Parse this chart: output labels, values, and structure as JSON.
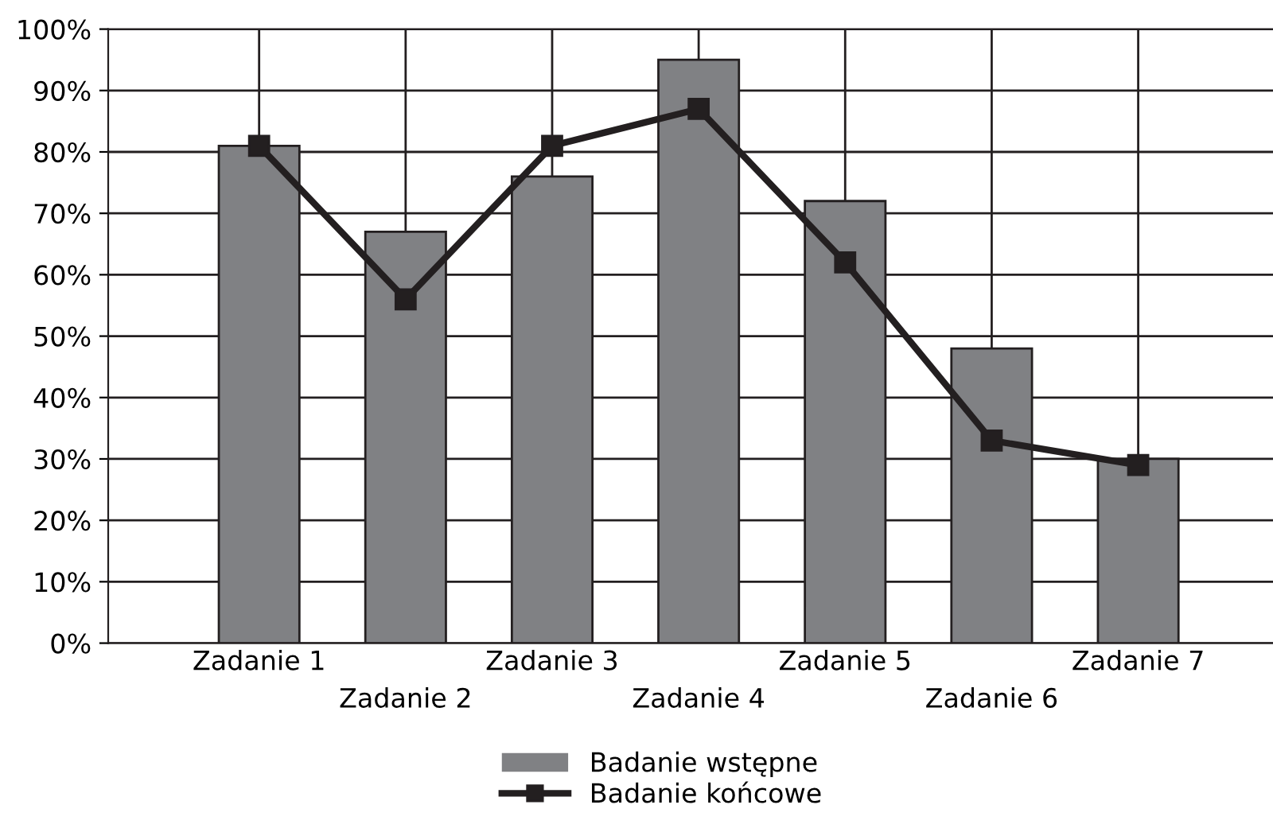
{
  "chart_data": {
    "type": "bar",
    "categories": [
      "Zadanie 1",
      "Zadanie 2",
      "Zadanie 3",
      "Zadanie 4",
      "Zadanie 5",
      "Zadanie 6",
      "Zadanie 7"
    ],
    "series": [
      {
        "name": "Badanie wstępne",
        "color": "#808184",
        "values": [
          81,
          67,
          76,
          95,
          72,
          48,
          30
        ]
      },
      {
        "name": "Badanie końcowe",
        "type": "line",
        "color": "#231f20",
        "marker": "square",
        "line_style": "solid",
        "values": [
          81,
          56,
          81,
          87,
          62,
          33,
          29
        ]
      }
    ],
    "ylim": [
      0,
      100
    ],
    "yticks": [
      {
        "value": 0,
        "label": "0%"
      },
      {
        "value": 10,
        "label": "10%"
      },
      {
        "value": 20,
        "label": "20%"
      },
      {
        "value": 30,
        "label": "30%"
      },
      {
        "value": 40,
        "label": "40%"
      },
      {
        "value": 50,
        "label": "50%"
      },
      {
        "value": 60,
        "label": "60%"
      },
      {
        "value": 70,
        "label": "70%"
      },
      {
        "value": 80,
        "label": "80%"
      },
      {
        "value": 90,
        "label": "90%"
      },
      {
        "value": 100,
        "label": "100%"
      }
    ],
    "grid": true,
    "legend": "bottom"
  }
}
